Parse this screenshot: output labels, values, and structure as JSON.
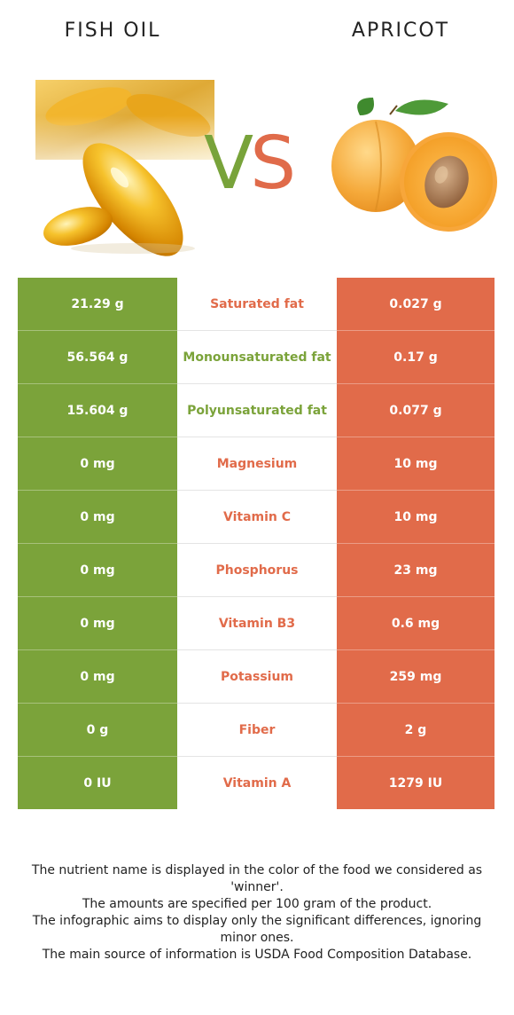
{
  "header": {
    "left_title": "FISH OIL",
    "right_title": "APRICOT",
    "vs_v": "V",
    "vs_s": "S"
  },
  "colors": {
    "left_food": "#7ba33a",
    "right_food": "#e16b4a"
  },
  "rows": [
    {
      "left": "21.29 g",
      "name": "Saturated fat",
      "right": "0.027 g",
      "winner": "right"
    },
    {
      "left": "56.564 g",
      "name": "Monounsaturated fat",
      "right": "0.17 g",
      "winner": "left"
    },
    {
      "left": "15.604 g",
      "name": "Polyunsaturated fat",
      "right": "0.077 g",
      "winner": "left"
    },
    {
      "left": "0 mg",
      "name": "Magnesium",
      "right": "10 mg",
      "winner": "right"
    },
    {
      "left": "0 mg",
      "name": "Vitamin C",
      "right": "10 mg",
      "winner": "right"
    },
    {
      "left": "0 mg",
      "name": "Phosphorus",
      "right": "23 mg",
      "winner": "right"
    },
    {
      "left": "0 mg",
      "name": "Vitamin B3",
      "right": "0.6 mg",
      "winner": "right"
    },
    {
      "left": "0 mg",
      "name": "Potassium",
      "right": "259 mg",
      "winner": "right"
    },
    {
      "left": "0 g",
      "name": "Fiber",
      "right": "2 g",
      "winner": "right"
    },
    {
      "left": "0 IU",
      "name": "Vitamin A",
      "right": "1279 IU",
      "winner": "right"
    }
  ],
  "footer": {
    "line1": "The nutrient name is displayed in the color of the food we considered as 'winner'.",
    "line2": "The amounts are specified per 100 gram of the product.",
    "line3": "The infographic aims to display only the significant differences, ignoring minor ones.",
    "line4": "The main source of information is USDA Food Composition Database."
  }
}
